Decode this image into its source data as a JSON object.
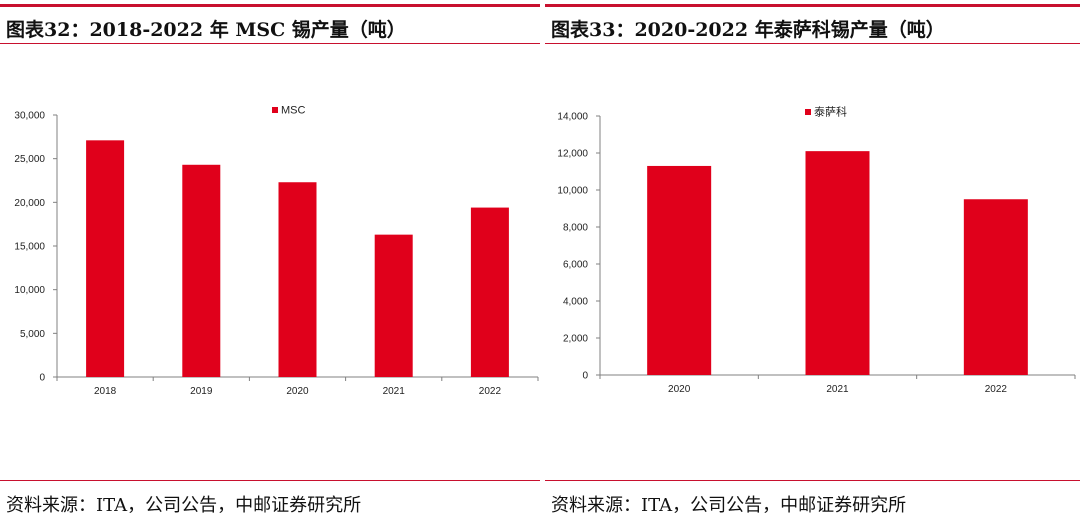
{
  "colors": {
    "accent": "#c8102e",
    "bar": "#e0001b",
    "axis": "#808080"
  },
  "left": {
    "title": "图表32：2018-2022 年 MSC 锡产量（吨）",
    "source": "资料来源：ITA，公司公告，中邮证券研究所"
  },
  "right": {
    "title": "图表33：2020-2022 年泰萨科锡产量（吨）",
    "source": "资料来源：ITA，公司公告，中邮证券研究所"
  },
  "chart_data": [
    {
      "type": "bar",
      "title": "2018-2022 年 MSC 锡产量（吨）",
      "categories": [
        "2018",
        "2019",
        "2020",
        "2021",
        "2022"
      ],
      "series": [
        {
          "name": "MSC",
          "values": [
            27100,
            24300,
            22300,
            16300,
            19400
          ]
        }
      ],
      "yticks": [
        "0",
        "5,000",
        "10,000",
        "15,000",
        "20,000",
        "25,000",
        "30,000"
      ],
      "ylim": [
        0,
        30000
      ],
      "xlabel": "",
      "ylabel": "",
      "legend": "top-center"
    },
    {
      "type": "bar",
      "title": "2020-2022 年泰萨科锡产量（吨）",
      "categories": [
        "2020",
        "2021",
        "2022"
      ],
      "series": [
        {
          "name": "泰萨科",
          "values": [
            11300,
            12100,
            9500
          ]
        }
      ],
      "yticks": [
        "0",
        "2,000",
        "4,000",
        "6,000",
        "8,000",
        "10,000",
        "12,000",
        "14,000"
      ],
      "ylim": [
        0,
        14000
      ],
      "xlabel": "",
      "ylabel": "",
      "legend": "top-center"
    }
  ]
}
